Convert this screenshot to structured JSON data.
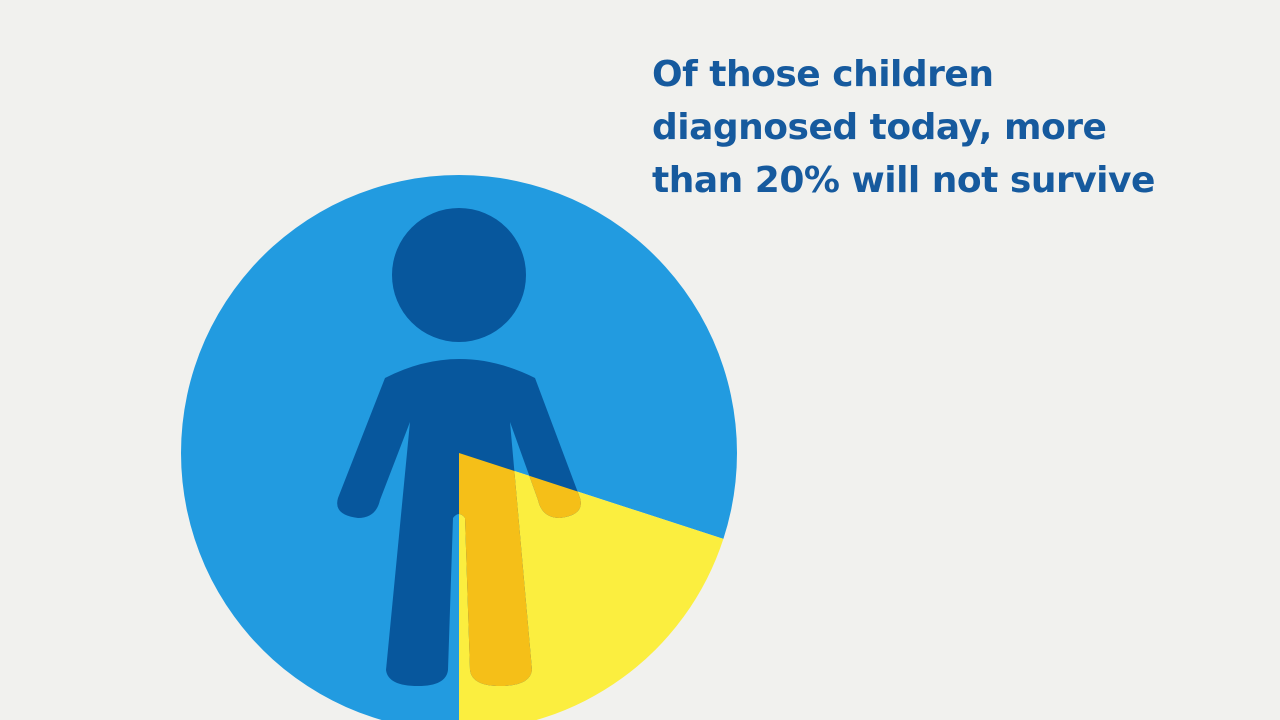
{
  "chart_data": {
    "type": "pie",
    "title": "Of those children diagnosed today, more than 20% will not survive",
    "categories": [
      null,
      null
    ],
    "series": [
      {
        "colors": [
          "#229be0",
          "#fbee3f"
        ],
        "values": [
          80,
          20
        ]
      }
    ]
  }
}
